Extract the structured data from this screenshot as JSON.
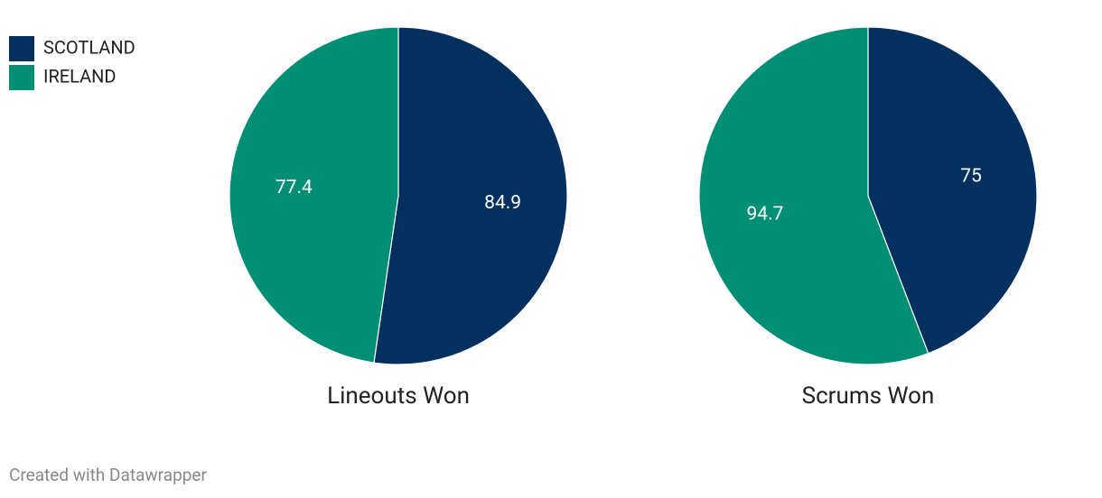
{
  "legend": {
    "items": [
      {
        "name": "SCOTLAND",
        "color": "#04305f"
      },
      {
        "name": "IRELAND",
        "color": "#008f75"
      }
    ]
  },
  "chart_data": [
    {
      "type": "pie",
      "title": "Lineouts Won",
      "values": [
        84.9,
        77.4
      ]
    },
    {
      "type": "pie",
      "title": "Scrums Won",
      "values": [
        75,
        94.7
      ]
    }
  ],
  "footer": "Created with Datawrapper"
}
